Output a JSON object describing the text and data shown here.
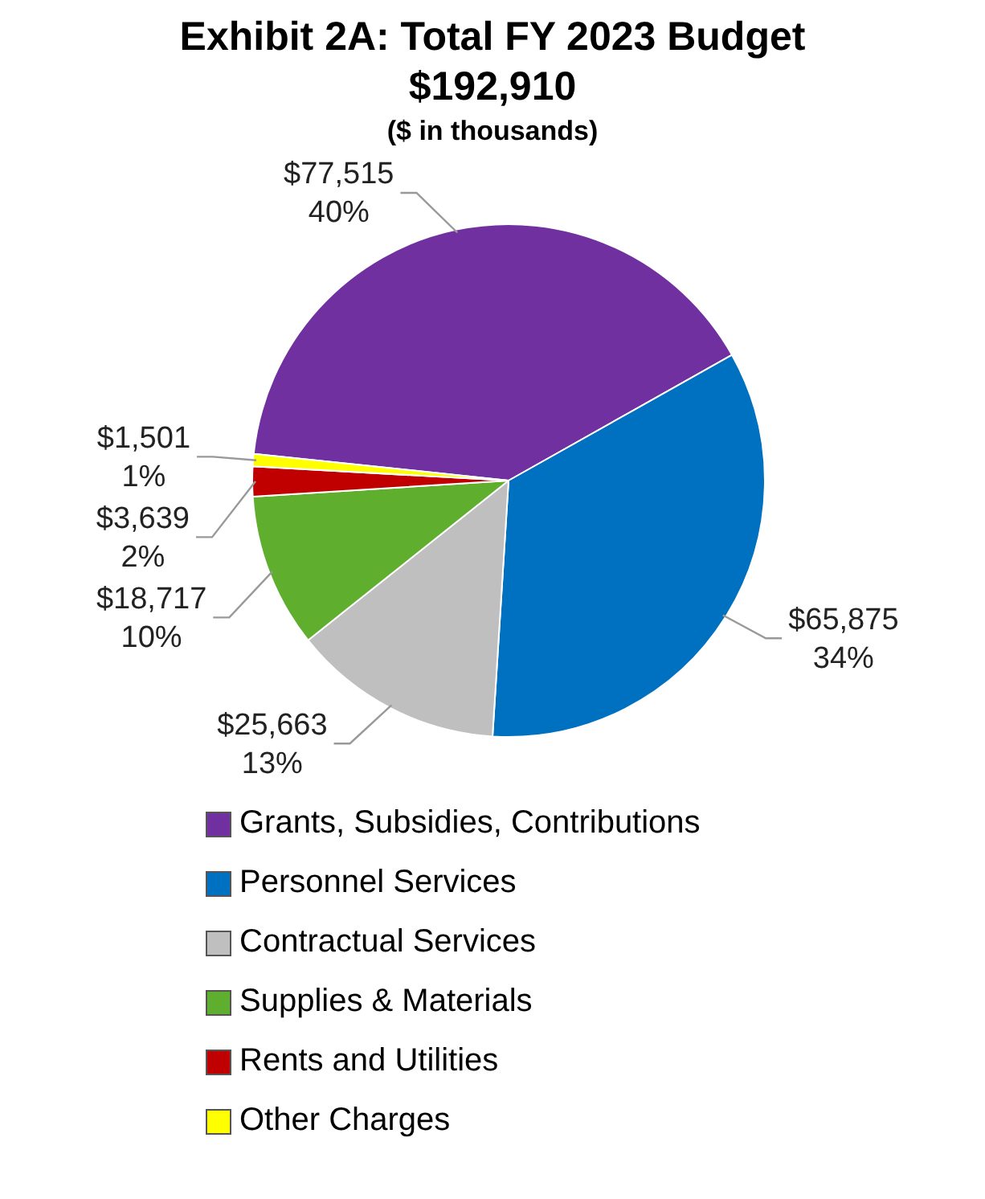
{
  "chart_data": {
    "type": "pie",
    "title": "Exhibit 2A: Total FY 2023 Budget",
    "subtitle": "$192,910",
    "annotations": [
      "($ in thousands)"
    ],
    "categories": [
      "Grants, Subsidies, Contributions",
      "Personnel Services",
      "Contractual Services",
      "Supplies & Materials",
      "Rents and Utilities",
      "Other Charges"
    ],
    "values": [
      77515,
      65875,
      25663,
      18717,
      3639,
      1501
    ],
    "colors": [
      "#7030a0",
      "#0070c0",
      "#bfbfbf",
      "#5fae2e",
      "#c00000",
      "#ffff00"
    ],
    "value_labels": [
      "$77,515\n40%",
      "$65,875\n34%",
      "$25,663\n13%",
      "$18,717\n10%",
      "$3,639\n2%",
      "$1,501\n1%"
    ],
    "legend": "bottom"
  }
}
